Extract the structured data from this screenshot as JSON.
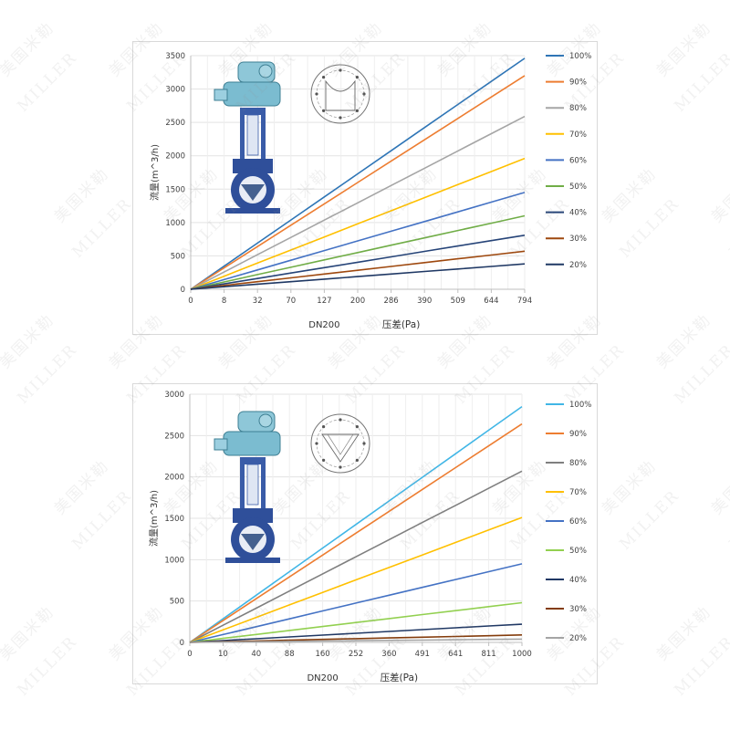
{
  "watermark": {
    "text_cn": "美国米勒",
    "text_en": "MILLER"
  },
  "chart_data": [
    {
      "type": "line",
      "ylabel": "流量(m^3/h)",
      "xlabel": "压差(Pa)",
      "sublabel": "DN200",
      "categories": [
        "0",
        "8",
        "32",
        "70",
        "127",
        "200",
        "286",
        "390",
        "509",
        "644",
        "794"
      ],
      "ylim": [
        0,
        3500
      ],
      "yticks": [
        0,
        500,
        1000,
        1500,
        2000,
        2500,
        3000,
        3500
      ],
      "grid": true,
      "legend_position": "right",
      "series": [
        {
          "name": "100%",
          "color": "#2e75b6",
          "values": [
            0,
            346,
            692,
            1038,
            1384,
            1730,
            2076,
            2422,
            2768,
            3114,
            3460
          ]
        },
        {
          "name": "90%",
          "color": "#ed7d31",
          "values": [
            0,
            320,
            640,
            960,
            1280,
            1600,
            1920,
            2240,
            2560,
            2880,
            3200
          ]
        },
        {
          "name": "80%",
          "color": "#a5a5a5",
          "values": [
            0,
            259,
            518,
            777,
            1036,
            1295,
            1554,
            1813,
            2072,
            2331,
            2590
          ]
        },
        {
          "name": "70%",
          "color": "#ffc000",
          "values": [
            0,
            196,
            392,
            588,
            784,
            980,
            1176,
            1372,
            1568,
            1764,
            1960
          ]
        },
        {
          "name": "60%",
          "color": "#4472c4",
          "values": [
            0,
            145,
            290,
            435,
            580,
            725,
            870,
            1015,
            1160,
            1305,
            1450
          ]
        },
        {
          "name": "50%",
          "color": "#70ad47",
          "values": [
            0,
            110,
            220,
            330,
            440,
            550,
            660,
            770,
            880,
            990,
            1100
          ]
        },
        {
          "name": "40%",
          "color": "#264478",
          "values": [
            0,
            81,
            162,
            243,
            324,
            405,
            486,
            567,
            648,
            729,
            810
          ]
        },
        {
          "name": "30%",
          "color": "#9e480e",
          "values": [
            0,
            57,
            114,
            171,
            228,
            285,
            342,
            399,
            456,
            513,
            570
          ]
        },
        {
          "name": "20%",
          "color": "#1f3864",
          "values": [
            0,
            38,
            76,
            114,
            152,
            190,
            228,
            266,
            304,
            342,
            380
          ]
        }
      ]
    },
    {
      "type": "line",
      "ylabel": "流量(m^3/h)",
      "xlabel": "压差(Pa)",
      "sublabel": "DN200",
      "categories": [
        "0",
        "10",
        "40",
        "88",
        "160",
        "252",
        "360",
        "491",
        "641",
        "811",
        "1000"
      ],
      "ylim": [
        0,
        3000
      ],
      "yticks": [
        0,
        500,
        1000,
        1500,
        2000,
        2500,
        3000
      ],
      "grid": true,
      "legend_position": "right",
      "series": [
        {
          "name": "100%",
          "color": "#41b6e6",
          "values": [
            0,
            285,
            570,
            855,
            1140,
            1425,
            1710,
            1995,
            2280,
            2565,
            2850
          ]
        },
        {
          "name": "90%",
          "color": "#ed7d31",
          "values": [
            0,
            264,
            528,
            792,
            1056,
            1320,
            1584,
            1848,
            2112,
            2376,
            2640
          ]
        },
        {
          "name": "80%",
          "color": "#7f7f7f",
          "values": [
            0,
            207,
            414,
            621,
            828,
            1035,
            1242,
            1449,
            1656,
            1863,
            2070
          ]
        },
        {
          "name": "70%",
          "color": "#ffc000",
          "values": [
            0,
            151,
            302,
            453,
            604,
            755,
            906,
            1057,
            1208,
            1359,
            1510
          ]
        },
        {
          "name": "60%",
          "color": "#4472c4",
          "values": [
            0,
            95,
            190,
            285,
            380,
            475,
            570,
            665,
            760,
            855,
            950
          ]
        },
        {
          "name": "50%",
          "color": "#92d050",
          "values": [
            0,
            48,
            96,
            144,
            192,
            240,
            288,
            336,
            384,
            432,
            480
          ]
        },
        {
          "name": "40%",
          "color": "#203864",
          "values": [
            0,
            22,
            44,
            66,
            88,
            110,
            132,
            154,
            176,
            198,
            220
          ]
        },
        {
          "name": "30%",
          "color": "#843c0c",
          "values": [
            0,
            9,
            18,
            27,
            36,
            45,
            54,
            63,
            72,
            81,
            90
          ]
        },
        {
          "name": "20%",
          "color": "#a5a5a5",
          "values": [
            0,
            4,
            8,
            12,
            16,
            20,
            24,
            28,
            32,
            36,
            40
          ]
        }
      ]
    }
  ]
}
